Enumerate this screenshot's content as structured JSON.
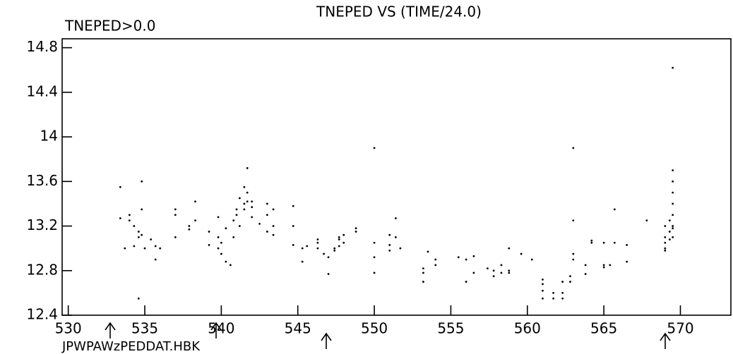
{
  "chart_data": {
    "type": "scatter",
    "title": "TNEPED VS (TIME/24.0)",
    "subtitle": "TNEPED>0.0",
    "annotation": "JPWPAWzPEDDAT.HBK",
    "color": "#000000",
    "xlim": [
      529.6,
      573.3
    ],
    "ylim": [
      12.4,
      14.88
    ],
    "xticks": [
      530,
      535,
      540,
      545,
      550,
      555,
      560,
      565,
      570
    ],
    "yticks": [
      12.4,
      12.8,
      13.2,
      13.6,
      14,
      14.4,
      14.8
    ],
    "x": [
      533.4,
      533.4,
      533.7,
      534,
      534,
      534.3,
      534.3,
      534.6,
      534.6,
      534.6,
      534.8,
      534.8,
      534.8,
      535,
      535.4,
      535.7,
      535.7,
      536,
      537,
      537,
      537,
      537.9,
      537.9,
      538.3,
      538.3,
      539.2,
      539.2,
      539.8,
      539.8,
      539.8,
      540,
      540,
      540.3,
      540.3,
      540.6,
      540.8,
      540.8,
      541,
      541,
      541.2,
      541.2,
      541.5,
      541.5,
      541.5,
      541.7,
      541.7,
      541.7,
      542,
      542,
      542,
      542.5,
      543,
      543,
      543,
      543.4,
      543.4,
      543.4,
      544.7,
      544.7,
      544.7,
      545.3,
      545.3,
      545.6,
      546.3,
      546.3,
      546.3,
      546.7,
      547,
      547,
      547.4,
      547.4,
      547.7,
      547.7,
      547.7,
      548,
      548,
      548.8,
      548.8,
      550,
      550,
      550,
      550,
      551,
      551,
      551,
      551.4,
      551.4,
      551.7,
      553.2,
      553.2,
      553.2,
      553.5,
      554,
      554,
      555.5,
      556,
      556,
      556.5,
      556.5,
      557.4,
      557.8,
      557.8,
      558.3,
      558.3,
      558.8,
      558.8,
      558.8,
      559.6,
      560.3,
      561,
      561,
      561,
      561,
      561.7,
      561.7,
      562.3,
      562.3,
      562.3,
      562.8,
      562.8,
      563,
      563,
      563,
      563,
      563.8,
      563.8,
      564.2,
      564.2,
      565,
      565,
      565,
      565.4,
      565.7,
      565.7,
      566.5,
      566.5,
      567.8,
      569,
      569,
      569,
      569,
      569,
      569.3,
      569.3,
      569.3,
      569.5,
      569.5,
      569.5,
      569.5,
      569.5,
      569.5,
      569.5,
      569.5,
      569.5
    ],
    "values": [
      13.55,
      13.27,
      13.0,
      13.3,
      13.25,
      13.2,
      13.02,
      12.55,
      13.15,
      13.1,
      13.35,
      13.6,
      13.12,
      13.0,
      13.08,
      13.02,
      12.9,
      13.0,
      13.35,
      13.3,
      13.1,
      13.17,
      13.2,
      13.42,
      13.25,
      13.15,
      13.03,
      13.28,
      13.1,
      13.0,
      12.95,
      13.05,
      12.88,
      13.18,
      12.85,
      13.25,
      13.1,
      13.3,
      13.35,
      13.45,
      13.2,
      13.55,
      13.4,
      13.35,
      13.72,
      13.5,
      13.42,
      13.37,
      13.28,
      13.42,
      13.22,
      13.4,
      13.3,
      13.15,
      13.35,
      13.2,
      13.12,
      13.38,
      13.2,
      13.03,
      12.88,
      13.0,
      13.02,
      13.05,
      13.08,
      13.0,
      12.95,
      12.77,
      12.92,
      13.0,
      12.98,
      13.02,
      13.08,
      13.1,
      13.12,
      13.05,
      13.18,
      13.15,
      13.9,
      13.05,
      12.92,
      12.78,
      13.12,
      13.03,
      12.98,
      13.27,
      13.1,
      13.0,
      12.82,
      12.78,
      12.7,
      12.97,
      12.9,
      12.85,
      12.92,
      12.9,
      12.7,
      12.93,
      12.78,
      12.82,
      12.8,
      12.75,
      12.85,
      12.78,
      12.8,
      12.78,
      13.0,
      12.95,
      12.9,
      12.72,
      12.68,
      12.62,
      12.55,
      12.6,
      12.55,
      12.55,
      12.6,
      12.7,
      12.7,
      12.75,
      13.25,
      12.95,
      12.9,
      13.9,
      12.77,
      12.85,
      13.07,
      13.05,
      12.85,
      12.83,
      13.05,
      12.85,
      13.35,
      13.05,
      13.03,
      12.88,
      13.25,
      13.0,
      13.05,
      13.1,
      13.2,
      12.98,
      13.08,
      13.15,
      13.25,
      13.1,
      13.2,
      13.3,
      13.4,
      13.5,
      13.6,
      13.7,
      14.62,
      13.18
    ]
  }
}
